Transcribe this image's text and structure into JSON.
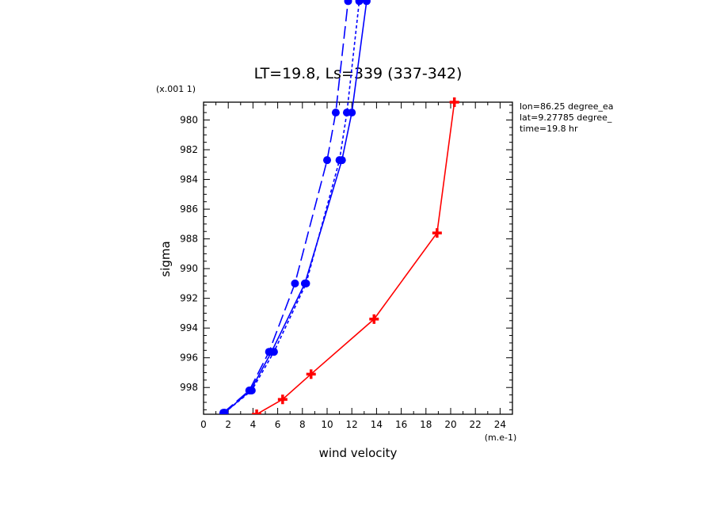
{
  "colors": {
    "blue": "#0000ff",
    "red": "#ff0000",
    "axis": "#000000"
  },
  "chart_data": {
    "type": "line",
    "title": "LT=19.8, Ls=339 (337-342)",
    "xlabel": "wind velocity",
    "x_units": "(m.e-1)",
    "ylabel": "sigma",
    "y_units": "(x.001 1)",
    "xlim": [
      0,
      25
    ],
    "ylim": [
      999.8,
      978.8
    ],
    "x_ticks": [
      0,
      2,
      4,
      6,
      8,
      10,
      12,
      14,
      16,
      18,
      20,
      22,
      24
    ],
    "y_ticks": [
      980,
      982,
      984,
      986,
      988,
      990,
      992,
      994,
      996,
      998
    ],
    "annotations": [
      "lon=86.25 degree_ea",
      "lat=9.27785 degree_",
      "time=19.8 hr"
    ],
    "series": [
      {
        "color": "#0000ff",
        "dash": "solid",
        "marker": "circle",
        "points": [
          [
            1.7,
            999.7
          ],
          [
            3.8,
            998.2
          ],
          [
            5.5,
            995.6
          ],
          [
            8.2,
            991.0
          ],
          [
            11.2,
            982.7
          ],
          [
            12.0,
            979.5
          ],
          [
            13.2,
            972.0
          ]
        ]
      },
      {
        "color": "#0000ff",
        "dash": "long",
        "marker": "circle",
        "points": [
          [
            1.6,
            999.7
          ],
          [
            3.7,
            998.2
          ],
          [
            5.3,
            995.6
          ],
          [
            7.4,
            991.0
          ],
          [
            10.0,
            982.7
          ],
          [
            10.7,
            979.5
          ],
          [
            11.7,
            972.0
          ]
        ]
      },
      {
        "color": "#0000ff",
        "dash": "short",
        "marker": "circle",
        "points": [
          [
            1.7,
            999.7
          ],
          [
            3.9,
            998.2
          ],
          [
            5.7,
            995.6
          ],
          [
            8.3,
            991.0
          ],
          [
            11.0,
            982.7
          ],
          [
            11.6,
            979.5
          ],
          [
            12.6,
            972.0
          ]
        ]
      },
      {
        "color": "#ff0000",
        "dash": "solid",
        "marker": "cross",
        "points": [
          [
            4.3,
            999.8
          ],
          [
            6.4,
            998.8
          ],
          [
            8.7,
            997.1
          ],
          [
            13.8,
            993.4
          ],
          [
            18.9,
            987.6
          ],
          [
            20.3,
            978.8
          ]
        ]
      }
    ]
  }
}
